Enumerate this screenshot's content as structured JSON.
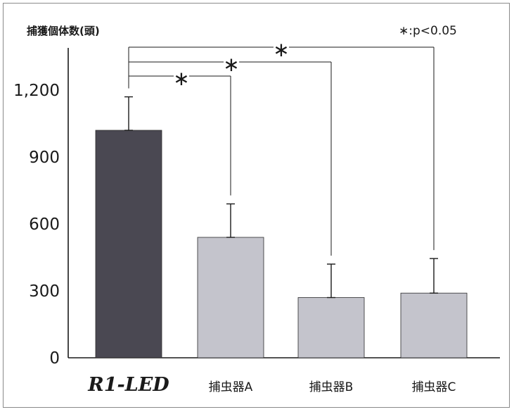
{
  "chart_data": {
    "type": "bar",
    "ylabel": "捕獲個体数(頭)",
    "significance_note": "∗:p<0.05",
    "categories": [
      "R1-LED",
      "捕虫器A",
      "捕虫器B",
      "捕虫器C"
    ],
    "values": [
      1020,
      540,
      270,
      290
    ],
    "errors": [
      150,
      150,
      150,
      155
    ],
    "ylim": [
      0,
      1300
    ],
    "yticks": [
      "0",
      "300",
      "600",
      "900",
      "1,200"
    ],
    "ytick_values": [
      0,
      300,
      600,
      900,
      1200
    ],
    "grid": false,
    "colors": [
      "#4a4852",
      "#c4c4cc",
      "#c4c4cc",
      "#c4c4cc"
    ],
    "comparisons": [
      {
        "from": "R1-LED",
        "to": "捕虫器A",
        "label": "∗"
      },
      {
        "from": "R1-LED",
        "to": "捕虫器B",
        "label": "∗"
      },
      {
        "from": "R1-LED",
        "to": "捕虫器C",
        "label": "∗"
      }
    ]
  }
}
